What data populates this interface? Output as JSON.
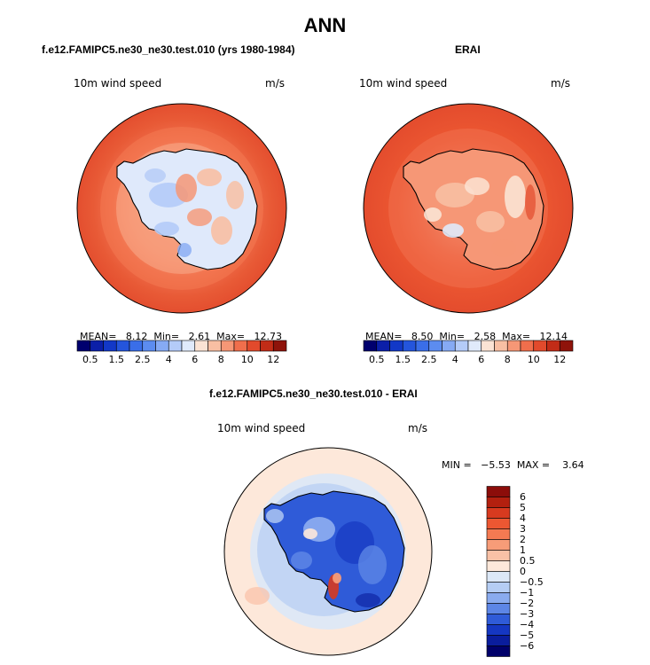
{
  "figure": {
    "title": "ANN"
  },
  "panels": [
    {
      "title": "f.e12.FAMIPC5.ne30_ne30.test.010 (yrs 1980-1984)",
      "variable": "10m wind speed",
      "units": "m/s",
      "stats": "MEAN=   8.12  Min=   2.61  Max=   12.73"
    },
    {
      "title": "ERAI",
      "variable": "10m wind speed",
      "units": "m/s",
      "stats": "MEAN=   8.50  Min=   2.58  Max=   12.14"
    },
    {
      "title": "f.e12.FAMIPC5.ne30_ne30.test.010 - ERAI",
      "variable": "10m wind speed",
      "units": "m/s",
      "stats": "MIN =   −5.53  MAX =    3.64"
    }
  ],
  "chart_data": [
    {
      "type": "heatmap",
      "projection": "south-polar-stereographic",
      "title": "f.e12.FAMIPC5.ne30_ne30.test.010 (yrs 1980-1984)",
      "variable": "10m wind speed",
      "units": "m/s",
      "mean": 8.12,
      "min": 2.61,
      "max": 12.73,
      "colorbar": {
        "levels": [
          0.5,
          1,
          1.5,
          2,
          2.5,
          3,
          4,
          5,
          6,
          7,
          8,
          9,
          10,
          11,
          12
        ],
        "tick_labels": [
          "0.5",
          "1.5",
          "2.5",
          "4",
          "6",
          "8",
          "10",
          "12"
        ],
        "colors": [
          "#00006e",
          "#0b1fa8",
          "#1238c7",
          "#2455dc",
          "#3a6ee8",
          "#5c8cf0",
          "#86aaf4",
          "#b4cbf8",
          "#e0eafb",
          "#fbe3d4",
          "#f8bfa3",
          "#f69776",
          "#f06e4c",
          "#e24a2c",
          "#c22c17",
          "#8f130a"
        ],
        "placement": "bottom"
      }
    },
    {
      "type": "heatmap",
      "projection": "south-polar-stereographic",
      "title": "ERAI",
      "variable": "10m wind speed",
      "units": "m/s",
      "mean": 8.5,
      "min": 2.58,
      "max": 12.14,
      "colorbar": {
        "levels": [
          0.5,
          1,
          1.5,
          2,
          2.5,
          3,
          4,
          5,
          6,
          7,
          8,
          9,
          10,
          11,
          12
        ],
        "tick_labels": [
          "0.5",
          "1.5",
          "2.5",
          "4",
          "6",
          "8",
          "10",
          "12"
        ],
        "colors": [
          "#00006e",
          "#0b1fa8",
          "#1238c7",
          "#2455dc",
          "#3a6ee8",
          "#5c8cf0",
          "#86aaf4",
          "#b4cbf8",
          "#e0eafb",
          "#fbe3d4",
          "#f8bfa3",
          "#f69776",
          "#f06e4c",
          "#e24a2c",
          "#c22c17",
          "#8f130a"
        ],
        "placement": "bottom"
      }
    },
    {
      "type": "heatmap",
      "projection": "south-polar-stereographic",
      "title": "f.e12.FAMIPC5.ne30_ne30.test.010 - ERAI",
      "variable": "10m wind speed",
      "units": "m/s",
      "min": -5.53,
      "max": 3.64,
      "colorbar": {
        "tick_labels": [
          "6",
          "5",
          "4",
          "3",
          "2",
          "1",
          "0.5",
          "0",
          "−0.5",
          "−1",
          "−2",
          "−3",
          "−4",
          "−5",
          "−6"
        ],
        "colors": [
          "#8c0d0a",
          "#b3200f",
          "#d83a1f",
          "#ec5732",
          "#f47a52",
          "#f79c78",
          "#f9c1a6",
          "#fde8da",
          "#dce8f7",
          "#b5cdf4",
          "#8aabef",
          "#5d86e6",
          "#2f5bd8",
          "#1537c2",
          "#0a1d9d",
          "#00006a"
        ],
        "placement": "right"
      }
    }
  ]
}
